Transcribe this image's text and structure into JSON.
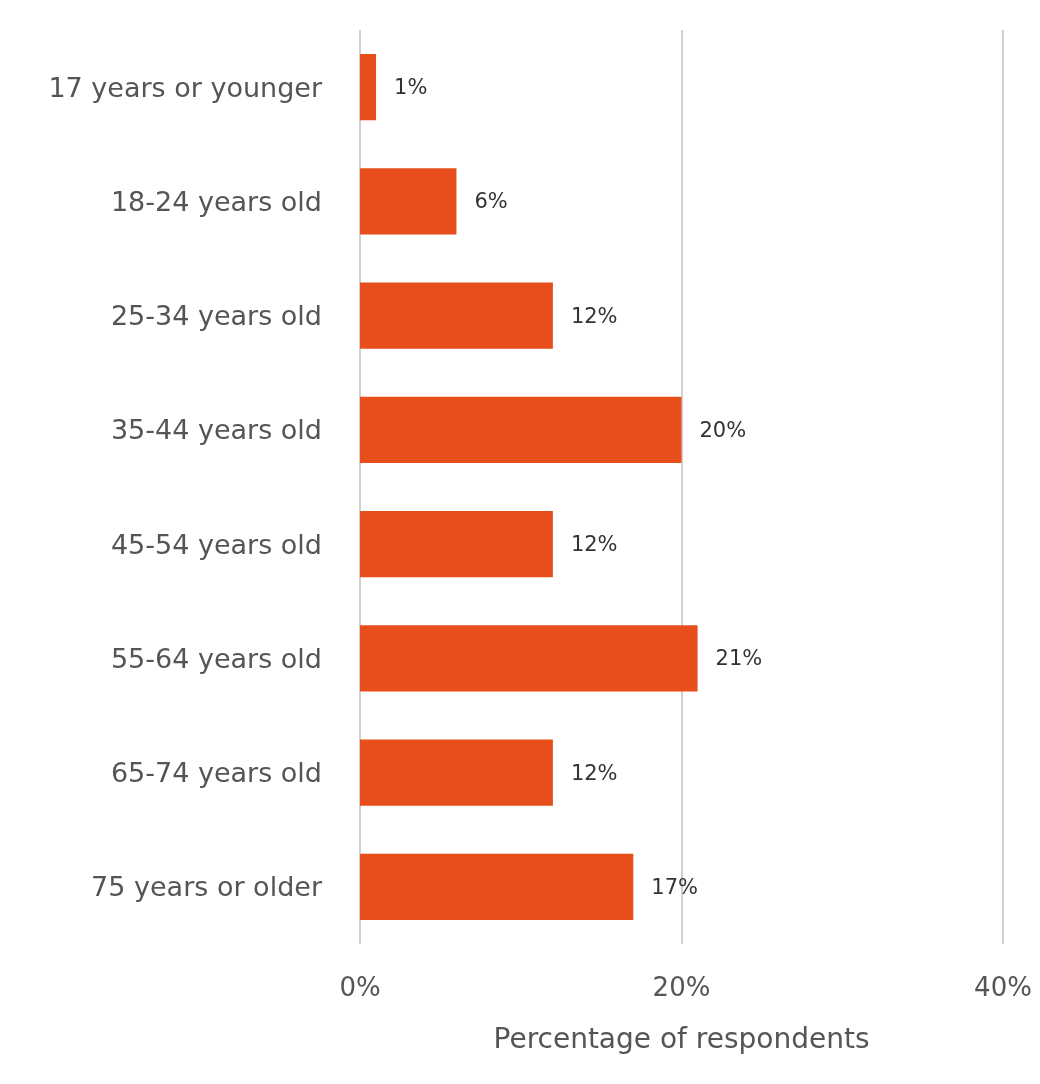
{
  "chart_data": {
    "type": "bar",
    "orientation": "horizontal",
    "xlabel": "Percentage of respondents",
    "categories": [
      "17 years or younger",
      "18-24 years old",
      "25-34 years old",
      "35-44 years old",
      "45-54 years old",
      "55-64 years old",
      "65-74 years old",
      "75 years or older"
    ],
    "values": [
      1,
      6,
      12,
      20,
      12,
      21,
      12,
      17
    ],
    "value_labels": [
      "1%",
      "6%",
      "12%",
      "20%",
      "12%",
      "21%",
      "12%",
      "17%"
    ],
    "color": "#e84e1b",
    "xlim": [
      0,
      40
    ],
    "xticks": [
      {
        "value": 0,
        "label": "0%"
      },
      {
        "value": 20,
        "label": "20%"
      },
      {
        "value": 40,
        "label": "40%"
      }
    ],
    "grid": "x"
  }
}
